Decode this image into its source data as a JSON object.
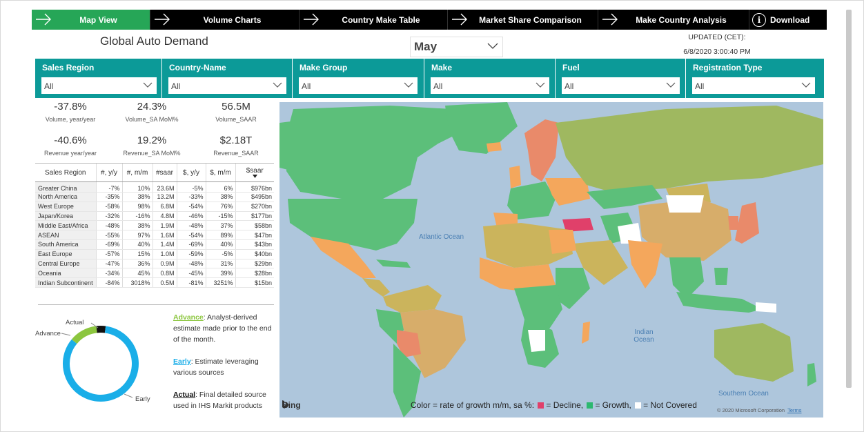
{
  "nav": {
    "tabs": [
      {
        "label": "Map View",
        "active": true
      },
      {
        "label": "Volume Charts",
        "active": false
      },
      {
        "label": "Country Make Table",
        "active": false
      },
      {
        "label": "Market Share Comparison",
        "active": false
      },
      {
        "label": "Make Country Analysis",
        "active": false
      }
    ],
    "download_label": "Download",
    "info_glyph": "i"
  },
  "page_title": "Global Auto Demand",
  "month": "May",
  "updated": {
    "label": "UPDATED (CET):",
    "timestamp": "6/8/2020 3:00:40 PM"
  },
  "filters": [
    {
      "label": "Sales Region",
      "value": "All"
    },
    {
      "label": "Country-Name",
      "value": "All"
    },
    {
      "label": "Make Group",
      "value": "All"
    },
    {
      "label": "Make",
      "value": "All"
    },
    {
      "label": "Fuel",
      "value": "All"
    },
    {
      "label": "Registration Type",
      "value": "All"
    }
  ],
  "kpis": [
    {
      "value": "-37.8%",
      "label": "Volume, year/year"
    },
    {
      "value": "24.3%",
      "label": "Volume_SA MoM%"
    },
    {
      "value": "56.5M",
      "label": "Volume_SAAR"
    },
    {
      "value": "-40.6%",
      "label": "Revenue year/year"
    },
    {
      "value": "19.2%",
      "label": "Revenue_SA MoM%"
    },
    {
      "value": "$2.18T",
      "label": "Revenue_SAAR"
    }
  ],
  "table": {
    "headers": [
      "Sales Region",
      "#, y/y",
      "#, m/m",
      "#saar",
      "$, y/y",
      "$, m/m",
      "$saar"
    ],
    "rows": [
      [
        "Greater China",
        "-7%",
        "10%",
        "23.6M",
        "-5%",
        "6%",
        "$976bn"
      ],
      [
        "North America",
        "-35%",
        "38%",
        "13.2M",
        "-33%",
        "38%",
        "$495bn"
      ],
      [
        "West Europe",
        "-58%",
        "98%",
        "6.8M",
        "-54%",
        "76%",
        "$270bn"
      ],
      [
        "Japan/Korea",
        "-32%",
        "-16%",
        "4.8M",
        "-46%",
        "-15%",
        "$177bn"
      ],
      [
        "Middle East/Africa",
        "-48%",
        "38%",
        "1.9M",
        "-48%",
        "37%",
        "$58bn"
      ],
      [
        "ASEAN",
        "-55%",
        "97%",
        "1.6M",
        "-54%",
        "89%",
        "$47bn"
      ],
      [
        "South America",
        "-69%",
        "40%",
        "1.4M",
        "-69%",
        "40%",
        "$43bn"
      ],
      [
        "East Europe",
        "-57%",
        "15%",
        "1.0M",
        "-59%",
        "-5%",
        "$40bn"
      ],
      [
        "Central Europe",
        "-47%",
        "36%",
        "0.9M",
        "-48%",
        "31%",
        "$29bn"
      ],
      [
        "Oceania",
        "-34%",
        "45%",
        "0.8M",
        "-45%",
        "39%",
        "$28bn"
      ],
      [
        "Indian Subcontinent",
        "-84%",
        "3018%",
        "0.5M",
        "-81%",
        "3251%",
        "$15bn"
      ]
    ]
  },
  "donut": {
    "labels": {
      "actual": "Actual",
      "advance": "Advance",
      "early": "Early"
    },
    "shares": {
      "actual": 0.04,
      "advance": 0.12,
      "early": 0.84
    },
    "colors": {
      "actual": "#111111",
      "advance": "#8cc63f",
      "early": "#1aaee8"
    }
  },
  "legend": [
    {
      "term": "Advance",
      "text": ": Analyst-derived estimate made prior to the end of the month.",
      "color": "#8cc63f"
    },
    {
      "term": "Early",
      "text": ": Estimate leveraging various sources",
      "color": "#1aaee8"
    },
    {
      "term": "Actual",
      "text": ": Final detailed source used in IHS Markit products",
      "color": "#111111"
    }
  ],
  "map": {
    "oceans": {
      "atlantic": "Atlantic Ocean",
      "indian": "Indian Ocean",
      "southern": "Southern Ocean"
    },
    "caption": {
      "prefix": "Color = rate of growth m/m, sa %:",
      "decline": "= Decline,",
      "growth": "= Growth,",
      "not_covered": "= Not Covered"
    },
    "colors": {
      "decline": "#e0406a",
      "growth": "#2db870",
      "not_covered": "#ffffff",
      "ocean": "#aec6dc"
    },
    "attribution": "Bing",
    "copyright": "© 2020 Microsoft Corporation",
    "terms": "Terms"
  }
}
